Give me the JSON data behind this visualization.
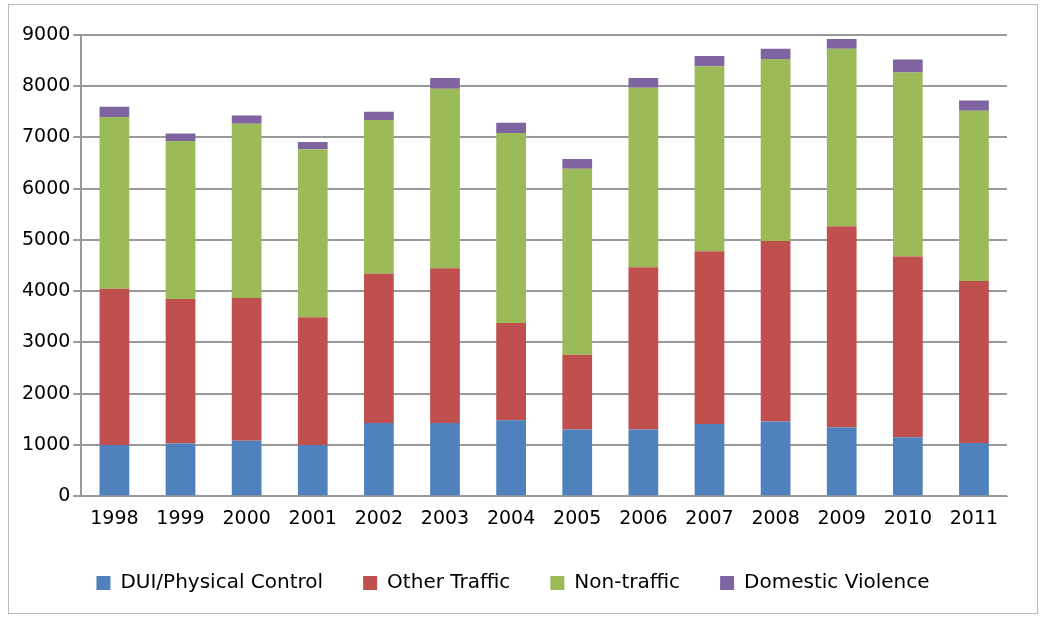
{
  "chart_data": {
    "type": "bar",
    "stacked": true,
    "categories": [
      "1998",
      "1999",
      "2000",
      "2001",
      "2002",
      "2003",
      "2004",
      "2005",
      "2006",
      "2007",
      "2008",
      "2009",
      "2010",
      "2011"
    ],
    "series": [
      {
        "name": "DUI/Physical Control",
        "color": "#4f81bd",
        "values": [
          1000,
          1030,
          1080,
          1000,
          1430,
          1430,
          1480,
          1300,
          1300,
          1410,
          1460,
          1340,
          1150,
          1040
        ]
      },
      {
        "name": "Other Traffic",
        "color": "#c0504d",
        "values": [
          3050,
          2820,
          2790,
          2490,
          2910,
          3020,
          1900,
          1460,
          3170,
          3370,
          3520,
          3930,
          3530,
          3160
        ]
      },
      {
        "name": "Non-traffic",
        "color": "#9bbb59",
        "values": [
          3350,
          3080,
          3400,
          3280,
          3000,
          3500,
          3710,
          3630,
          3500,
          3610,
          3550,
          3460,
          3590,
          3320
        ]
      },
      {
        "name": "Domestic Violence",
        "color": "#8064a2",
        "values": [
          200,
          150,
          160,
          140,
          160,
          210,
          200,
          190,
          190,
          200,
          200,
          190,
          250,
          200
        ]
      }
    ],
    "ylim": [
      0,
      9000
    ],
    "yticks": [
      0,
      1000,
      2000,
      3000,
      4000,
      5000,
      6000,
      7000,
      8000,
      9000
    ],
    "grid": "y",
    "legend": "bottom"
  }
}
